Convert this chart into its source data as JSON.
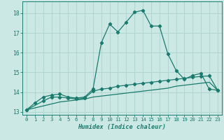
{
  "xlabel": "Humidex (Indice chaleur)",
  "bg_color": "#cce8e4",
  "grid_color": "#b0d4d0",
  "line_color": "#1a7a6e",
  "xlim": [
    -0.5,
    23.5
  ],
  "ylim": [
    12.85,
    18.6
  ],
  "yticks": [
    13,
    14,
    15,
    16,
    17,
    18
  ],
  "xticks": [
    0,
    1,
    2,
    3,
    4,
    5,
    6,
    7,
    8,
    9,
    10,
    11,
    12,
    13,
    14,
    15,
    16,
    17,
    18,
    19,
    20,
    21,
    22,
    23
  ],
  "line1_x": [
    0,
    1,
    2,
    3,
    4,
    5,
    6,
    7,
    8,
    9,
    10,
    11,
    12,
    13,
    14,
    15,
    16,
    17,
    18,
    19,
    20,
    21,
    22,
    23
  ],
  "line1_y": [
    13.1,
    13.45,
    13.75,
    13.85,
    13.9,
    13.75,
    13.7,
    13.75,
    14.15,
    16.5,
    17.45,
    17.05,
    17.55,
    18.05,
    18.15,
    17.35,
    17.35,
    15.95,
    15.1,
    14.65,
    14.85,
    14.95,
    14.15,
    14.1
  ],
  "line2_x": [
    0,
    2,
    3,
    4,
    5,
    6,
    7,
    8,
    9,
    10,
    11,
    12,
    13,
    14,
    15,
    16,
    17,
    18,
    19,
    20,
    21,
    22,
    23
  ],
  "line2_y": [
    13.1,
    13.55,
    13.75,
    13.75,
    13.7,
    13.65,
    13.7,
    14.05,
    14.15,
    14.2,
    14.3,
    14.35,
    14.4,
    14.45,
    14.5,
    14.55,
    14.6,
    14.65,
    14.7,
    14.75,
    14.8,
    14.82,
    14.1
  ],
  "line3_x": [
    0,
    1,
    2,
    3,
    4,
    5,
    6,
    7,
    8,
    9,
    10,
    11,
    12,
    13,
    14,
    15,
    16,
    17,
    18,
    19,
    20,
    21,
    22,
    23
  ],
  "line3_y": [
    13.1,
    13.2,
    13.3,
    13.4,
    13.5,
    13.55,
    13.6,
    13.65,
    13.75,
    13.8,
    13.85,
    13.9,
    13.95,
    14.0,
    14.05,
    14.1,
    14.15,
    14.2,
    14.3,
    14.35,
    14.4,
    14.45,
    14.5,
    14.1
  ]
}
